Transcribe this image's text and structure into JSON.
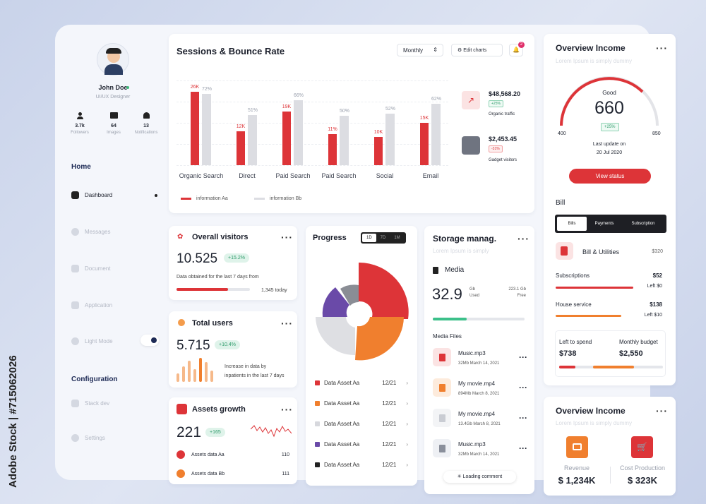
{
  "profile": {
    "name": "John Doe",
    "role": "UI/UX Designer",
    "stats": [
      {
        "value": "3.7k",
        "label": "Followers"
      },
      {
        "value": "64",
        "label": "Images"
      },
      {
        "value": "13",
        "label": "Notifications"
      }
    ]
  },
  "nav": {
    "home_heading": "Home",
    "config_heading": "Configuration",
    "items": [
      "Dashboard",
      "Messages",
      "Document",
      "Application",
      "Light Mode"
    ],
    "config_items": [
      "Stack dev",
      "Settings"
    ]
  },
  "sessions": {
    "title": "Sessions & Bounce Rate",
    "period": "Monthly",
    "edit": "Edit charts",
    "notif_count": "2",
    "legend": [
      "information Aa",
      "information Bb"
    ],
    "side": [
      {
        "value": "$48,568.20",
        "badge": "+25%",
        "label": "Organic traffic"
      },
      {
        "value": "$2,453.45",
        "badge": "-31%",
        "label": "Gadget visitors"
      }
    ]
  },
  "chart_data": {
    "type": "bar",
    "categories": [
      "Organic Search",
      "Direct",
      "Paid Search",
      "Paid Search",
      "Social",
      "Email"
    ],
    "series": [
      {
        "name": "information Aa",
        "values": [
          26,
          12,
          19,
          11,
          10,
          15
        ],
        "labels": [
          "26K",
          "12K",
          "19K",
          "11%",
          "10K",
          "15K"
        ]
      },
      {
        "name": "information Bb",
        "values": [
          72,
          51,
          66,
          50,
          52,
          62
        ],
        "labels": [
          "72%",
          "51%",
          "66%",
          "50%",
          "52%",
          "62%"
        ]
      }
    ],
    "colors": [
      "#dd3438",
      "#dcdde2"
    ]
  },
  "visitors": {
    "title": "Overall visitors",
    "value": "10.525",
    "badge": "+15.2%",
    "note": "Data obtained for the last 7 days from",
    "today": "1,345 today",
    "progress": 0.7
  },
  "users": {
    "title": "Total users",
    "value": "5.715",
    "badge": "+10.4%",
    "note1": "Increase in data by",
    "note2": "inpatients in the last 7 days"
  },
  "assets": {
    "title": "Assets growth",
    "value": "221",
    "badge": "+165",
    "rows": [
      {
        "label": "Assets data Aa",
        "value": "110"
      },
      {
        "label": "Assets data Bb",
        "value": "111"
      }
    ]
  },
  "progress": {
    "title": "Progress",
    "tabs": [
      "1D",
      "7D",
      "1M"
    ],
    "rows": [
      {
        "label": "Data Asset Aa",
        "date": "12/21",
        "color": "#dd3438"
      },
      {
        "label": "Data Asset Aa",
        "date": "12/21",
        "color": "#f07f2e"
      },
      {
        "label": "Data Asset Aa",
        "date": "12/21",
        "color": "#d7d8dd"
      },
      {
        "label": "Data Asset Aa",
        "date": "12/21",
        "color": "#6a4aa8"
      },
      {
        "label": "Data Asset Aa",
        "date": "12/21",
        "color": "#222222"
      }
    ]
  },
  "storage": {
    "title": "Storage manag.",
    "subtitle": "Lorem Ipsum is simply",
    "media_label": "Media",
    "used": "32.9",
    "used_unit": "Gb",
    "used_label": "Used",
    "free": "223.1 Gb",
    "free_label": "Free",
    "files_heading": "Media Files",
    "loading": "Loading comment",
    "files": [
      {
        "name": "Music.mp3",
        "meta": "32Mb March 14, 2021"
      },
      {
        "name": "My movie.mp4",
        "meta": "894Mb March 8, 2021"
      },
      {
        "name": "My movie.mp4",
        "meta": "13.4Gb March 8, 2021"
      },
      {
        "name": "Music.mp3",
        "meta": "32Mb March 14, 2021"
      }
    ]
  },
  "income": {
    "title": "Overview Income",
    "subtitle": "Lorem Ipsum is simply dummy",
    "rating": "Good",
    "score": "660",
    "badge": "+25%",
    "min": "400",
    "max": "850",
    "update_label": "Last update on",
    "update_date": "20 Jul 2020",
    "button": "View status"
  },
  "bill": {
    "heading": "Bill",
    "tabs": [
      "Bills",
      "Payments",
      "Subscription"
    ],
    "item": "Bill & Utilities",
    "item_value": "$320",
    "rows": [
      {
        "label": "Subscriptions",
        "value": "$52",
        "left": "Left $0"
      },
      {
        "label": "House service",
        "value": "$138",
        "left": "Left $10"
      }
    ],
    "spend_label": "Left to spend",
    "spend": "$738",
    "budget_label": "Monthly budget",
    "budget": "$2,550"
  },
  "income2": {
    "title": "Overview Income",
    "subtitle": "Lorem Ipsum is simply dummy",
    "rev_label": "Revenue",
    "rev": "$ 1,234K",
    "cost_label": "Cost Production",
    "cost": "$ 323K"
  },
  "watermark": {
    "id": "#715062026",
    "brand": "Adobe Stock"
  }
}
